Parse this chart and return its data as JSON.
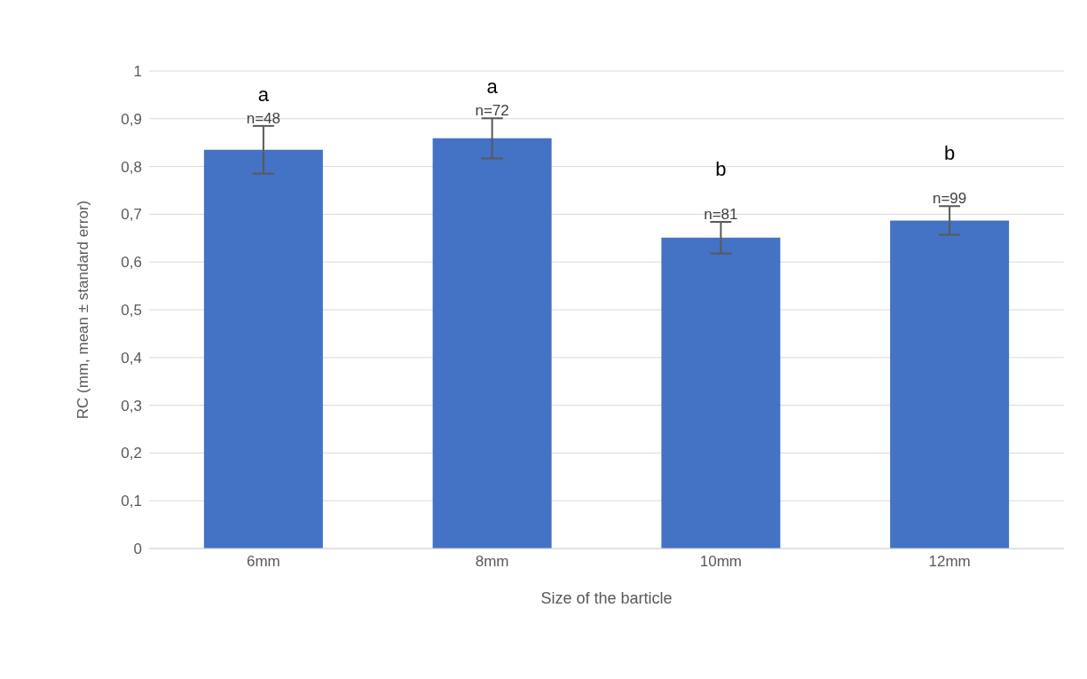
{
  "chart_data": {
    "type": "bar",
    "xlabel": "Size of the barticle",
    "ylabel": "RC (mm, mean ± standard error)",
    "categories": [
      "6mm",
      "8mm",
      "10mm",
      "12mm"
    ],
    "values": [
      0.835,
      0.859,
      0.651,
      0.687
    ],
    "errors": [
      0.05,
      0.042,
      0.033,
      0.03
    ],
    "color": "#4472c4",
    "ylim": [
      0,
      1
    ],
    "yticks": [
      0,
      {
        "value": 0.1,
        "label": "0,1"
      },
      {
        "value": 0.2,
        "label": "0,2"
      },
      {
        "value": 0.3,
        "label": "0,3"
      },
      {
        "value": 0.4,
        "label": "0,4"
      },
      {
        "value": 0.5,
        "label": "0,5"
      },
      {
        "value": 0.6,
        "label": "0,6"
      },
      {
        "value": 0.7,
        "label": "0,7"
      },
      {
        "value": 0.8,
        "label": "0,8"
      },
      {
        "value": 0.9,
        "label": "0,9"
      },
      1
    ],
    "grid": "y",
    "annotations": [
      "a",
      "n=48",
      "a",
      "n=72",
      "b",
      "n=81",
      "b",
      "n=99"
    ]
  }
}
